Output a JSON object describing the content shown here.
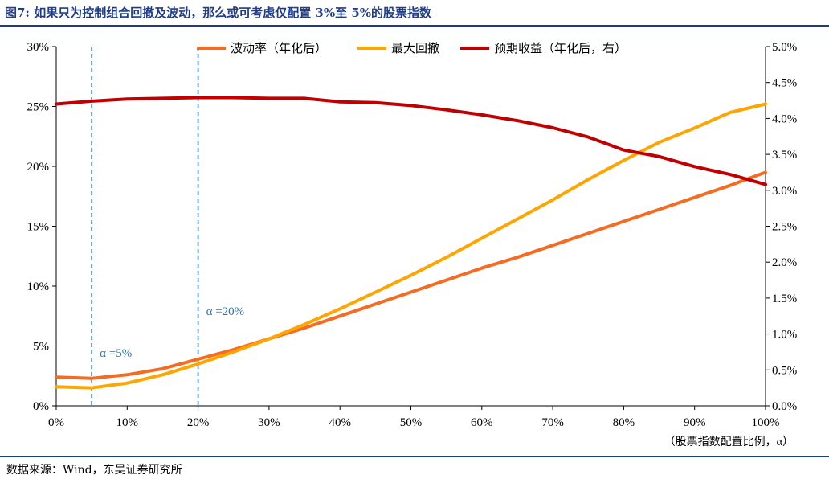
{
  "title": "图7:  如果只为控制组合回撤及波动，那么或可考虑仅配置 3%至 5%的股票指数",
  "source": "数据来源：Wind，东吴证券研究所",
  "colors": {
    "title": "#1f3c88",
    "volatility": "#f36c21",
    "max_drawdown": "#ffa500",
    "expected_return": "#c00000",
    "ref_line": "#2e75b6"
  },
  "chart_data": {
    "type": "line",
    "xlabel": "（股票指数配置比例，α）",
    "xlim": [
      0,
      100
    ],
    "x_ticks": [
      "0%",
      "10%",
      "20%",
      "30%",
      "40%",
      "50%",
      "60%",
      "70%",
      "80%",
      "90%",
      "100%"
    ],
    "left_axis": {
      "ylim": [
        0,
        30
      ],
      "ticks": [
        "0%",
        "5%",
        "10%",
        "15%",
        "20%",
        "25%",
        "30%"
      ]
    },
    "right_axis": {
      "ylim": [
        0,
        5
      ],
      "ticks": [
        "0.0%",
        "0.5%",
        "1.0%",
        "1.5%",
        "2.0%",
        "2.5%",
        "3.0%",
        "3.5%",
        "4.0%",
        "4.5%",
        "5.0%"
      ]
    },
    "legend": {
      "position": "top",
      "entries": [
        "波动率（年化后）",
        "最大回撤",
        "预期收益（年化后，右）"
      ]
    },
    "x": [
      0,
      5,
      10,
      15,
      20,
      25,
      30,
      35,
      40,
      45,
      50,
      55,
      60,
      65,
      70,
      75,
      80,
      85,
      90,
      95,
      100
    ],
    "series": [
      {
        "name": "波动率（年化后）",
        "axis": "left",
        "values": [
          2.4,
          2.3,
          2.6,
          3.1,
          3.9,
          4.7,
          5.6,
          6.5,
          7.5,
          8.5,
          9.5,
          10.5,
          11.5,
          12.4,
          13.4,
          14.4,
          15.4,
          16.4,
          17.4,
          18.4,
          19.5
        ]
      },
      {
        "name": "最大回撤",
        "axis": "left",
        "values": [
          1.6,
          1.5,
          1.9,
          2.6,
          3.5,
          4.5,
          5.6,
          6.8,
          8.1,
          9.5,
          10.9,
          12.4,
          14.0,
          15.6,
          17.2,
          18.9,
          20.5,
          22.0,
          23.2,
          24.5,
          25.2
        ]
      },
      {
        "name": "预期收益（年化后，右）",
        "axis": "right",
        "values": [
          4.2,
          4.24,
          4.27,
          4.28,
          4.29,
          4.29,
          4.28,
          4.28,
          4.23,
          4.22,
          4.18,
          4.12,
          4.05,
          3.97,
          3.87,
          3.74,
          3.56,
          3.47,
          3.33,
          3.22,
          3.08
        ]
      }
    ],
    "annotations": [
      {
        "x": 5,
        "label": "α =5%"
      },
      {
        "x": 20,
        "label": "α =20%"
      }
    ]
  }
}
